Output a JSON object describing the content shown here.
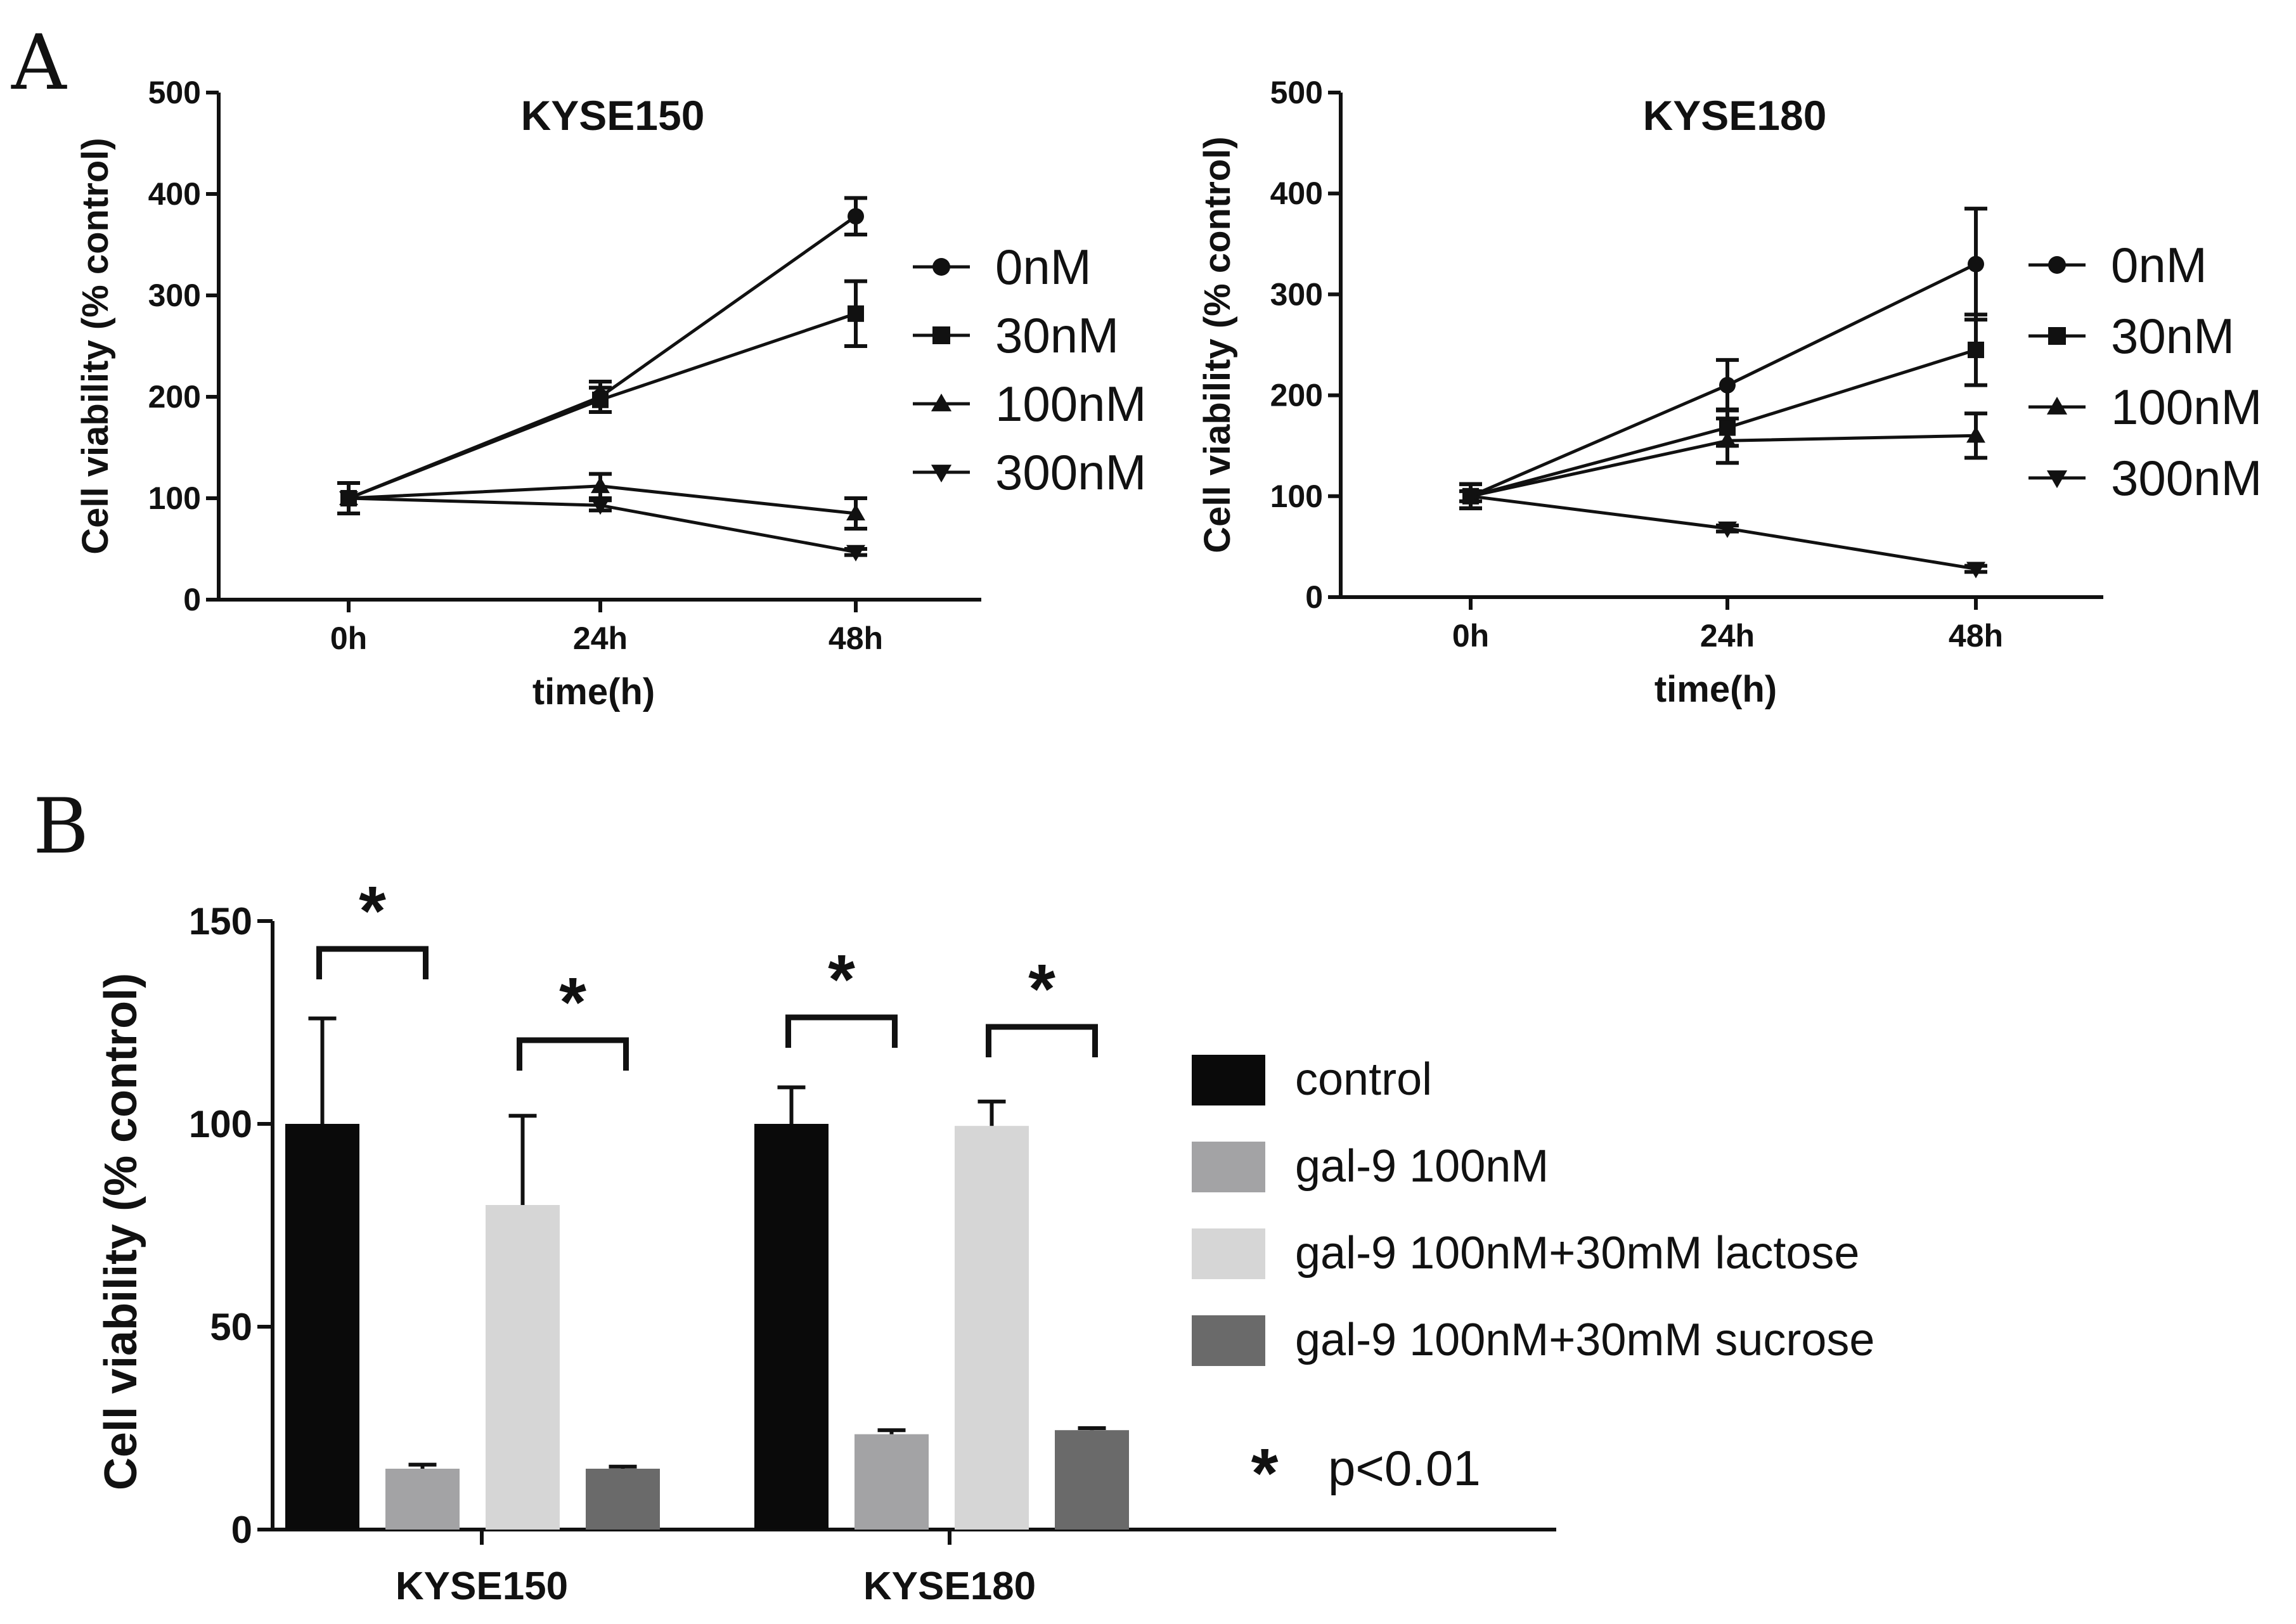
{
  "panel_labels": {
    "a": "A",
    "b": "B"
  },
  "chart_data": [
    {
      "type": "line",
      "panel": "A",
      "title": "KYSE150",
      "xlabel": "time(h)",
      "ylabel": "Cell viability (% control)",
      "categories": [
        "0h",
        "24h",
        "48h"
      ],
      "ylim": [
        0,
        500
      ],
      "yticks": [
        0,
        100,
        200,
        300,
        400,
        500
      ],
      "series": [
        {
          "name": "0nM",
          "marker": "circle",
          "values": [
            100,
            200,
            378
          ],
          "errors": [
            15,
            15,
            18
          ]
        },
        {
          "name": "30nM",
          "marker": "square",
          "values": [
            100,
            197,
            282
          ],
          "errors": [
            15,
            12,
            32
          ]
        },
        {
          "name": "100nM",
          "marker": "triangle-up",
          "values": [
            100,
            112,
            85
          ],
          "errors": [
            15,
            12,
            15
          ]
        },
        {
          "name": "300nM",
          "marker": "triangle-down",
          "values": [
            100,
            93,
            47
          ],
          "errors": [
            15,
            5,
            3
          ]
        }
      ]
    },
    {
      "type": "line",
      "panel": "A",
      "title": "KYSE180",
      "xlabel": "time(h)",
      "ylabel": "Cell viability (% control)",
      "categories": [
        "0h",
        "24h",
        "48h"
      ],
      "ylim": [
        0,
        500
      ],
      "yticks": [
        0,
        100,
        200,
        300,
        400,
        500
      ],
      "series": [
        {
          "name": "0nM",
          "marker": "circle",
          "values": [
            100,
            210,
            330
          ],
          "errors": [
            12,
            25,
            55
          ]
        },
        {
          "name": "30nM",
          "marker": "square",
          "values": [
            100,
            168,
            245
          ],
          "errors": [
            12,
            18,
            35
          ]
        },
        {
          "name": "100nM",
          "marker": "triangle-up",
          "values": [
            100,
            155,
            160
          ],
          "errors": [
            12,
            22,
            22
          ]
        },
        {
          "name": "300nM",
          "marker": "triangle-down",
          "values": [
            100,
            68,
            28
          ],
          "errors": [
            5,
            3,
            3
          ]
        }
      ]
    },
    {
      "type": "bar",
      "panel": "B",
      "ylabel": "Cell viability (% control)",
      "categories": [
        "KYSE150",
        "KYSE180"
      ],
      "ylim": [
        0,
        150
      ],
      "yticks": [
        0,
        50,
        100,
        150
      ],
      "series": [
        {
          "name": "control",
          "color": "#0a0a0a",
          "values": [
            100,
            100
          ],
          "errors": [
            26,
            9
          ]
        },
        {
          "name": "gal-9 100nM",
          "color": "#a3a3a5",
          "values": [
            15,
            23.5
          ],
          "errors": [
            1,
            1
          ]
        },
        {
          "name": "gal-9 100nM+30mM lactose",
          "color": "#d6d6d6",
          "values": [
            80,
            99.5
          ],
          "errors": [
            22,
            6
          ]
        },
        {
          "name": "gal-9 100nM+30mM sucrose",
          "color": "#6a6a6a",
          "values": [
            15,
            24.5
          ],
          "errors": [
            0.5,
            0.5
          ]
        }
      ],
      "significance": [
        {
          "label": "*",
          "category": "KYSE150",
          "from": "control",
          "to": "gal-9 100nM"
        },
        {
          "label": "*",
          "category": "KYSE150",
          "from": "gal-9 100nM+30mM lactose",
          "to": "gal-9 100nM+30mM sucrose"
        },
        {
          "label": "*",
          "category": "KYSE180",
          "from": "control",
          "to": "gal-9 100nM"
        },
        {
          "label": "*",
          "category": "KYSE180",
          "from": "gal-9 100nM+30mM lactose",
          "to": "gal-9 100nM+30mM sucrose"
        }
      ],
      "significance_note": {
        "symbol": "*",
        "text": "p<0.01"
      }
    }
  ]
}
